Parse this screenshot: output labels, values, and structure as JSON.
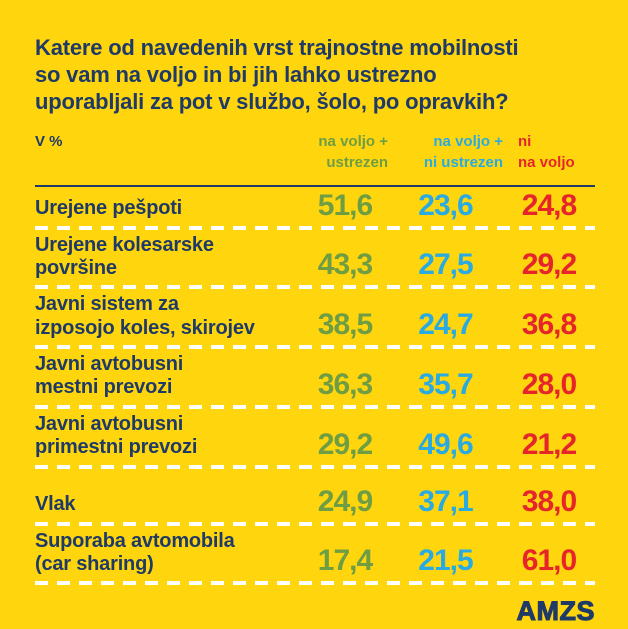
{
  "colors": {
    "background": "#FFD60E",
    "navy": "#1F3A66",
    "green": "#6E9D43",
    "blue": "#29ABE2",
    "red": "#E6252B",
    "separator": "#FFFFFF"
  },
  "title_display": "Katere od navedenih vrst trajnostne mobilnosti\nso vam na voljo in bi jih lahko ustrezno\nuporabljali za pot v službo, šolo, po opravkih?",
  "unit_label": "V %",
  "logo_text": "AMZS",
  "chart_data": {
    "type": "table",
    "title": "Katere od navedenih vrst trajnostne mobilnosti so vam na voljo in bi jih lahko ustrezno uporabljali za pot v službo, šolo, po opravkih?",
    "unit": "V %",
    "legend_position": "top",
    "columns": [
      {
        "label": "na voljo + ustrezen",
        "line1": "na voljo +",
        "line2": "ustrezen",
        "color": "#6E9D43"
      },
      {
        "label": "na voljo + ni ustrezen",
        "line1": "na voljo +",
        "line2": "ni ustrezen",
        "color": "#29ABE2"
      },
      {
        "label": "ni na voljo",
        "line1": "ni",
        "line2": "na voljo",
        "color": "#E6252B"
      }
    ],
    "rows": [
      {
        "label": "Urejene pešpoti",
        "label_display": "Urejene pešpoti",
        "values": [
          51.6,
          23.6,
          24.8
        ],
        "display": [
          "51,6",
          "23,6",
          "24,8"
        ]
      },
      {
        "label": "Urejene kolesarske površine",
        "label_display": "Urejene kolesarske\npovršine",
        "values": [
          43.3,
          27.5,
          29.2
        ],
        "display": [
          "43,3",
          "27,5",
          "29,2"
        ]
      },
      {
        "label": "Javni sistem za izposojo koles, skirojev",
        "label_display": "Javni sistem za\nizposojo koles, skirojev",
        "values": [
          38.5,
          24.7,
          36.8
        ],
        "display": [
          "38,5",
          "24,7",
          "36,8"
        ]
      },
      {
        "label": "Javni avtobusni mestni prevozi",
        "label_display": "Javni avtobusni\nmestni prevozi",
        "values": [
          36.3,
          35.7,
          28.0
        ],
        "display": [
          "36,3",
          "35,7",
          "28,0"
        ]
      },
      {
        "label": "Javni avtobusni primestni prevozi",
        "label_display": "Javni avtobusni\nprimestni prevozi",
        "values": [
          29.2,
          49.6,
          21.2
        ],
        "display": [
          "29,2",
          "49,6",
          "21,2"
        ]
      },
      {
        "label": "Vlak",
        "label_display": "Vlak",
        "values": [
          24.9,
          37.1,
          38.0
        ],
        "display": [
          "24,9",
          "37,1",
          "38,0"
        ]
      },
      {
        "label": "Suporaba avtomobila (car sharing)",
        "label_display": "Suporaba avtomobila\n(car sharing)",
        "values": [
          17.4,
          21.5,
          61.0
        ],
        "display": [
          "17,4",
          "21,5",
          "61,0"
        ]
      }
    ]
  }
}
